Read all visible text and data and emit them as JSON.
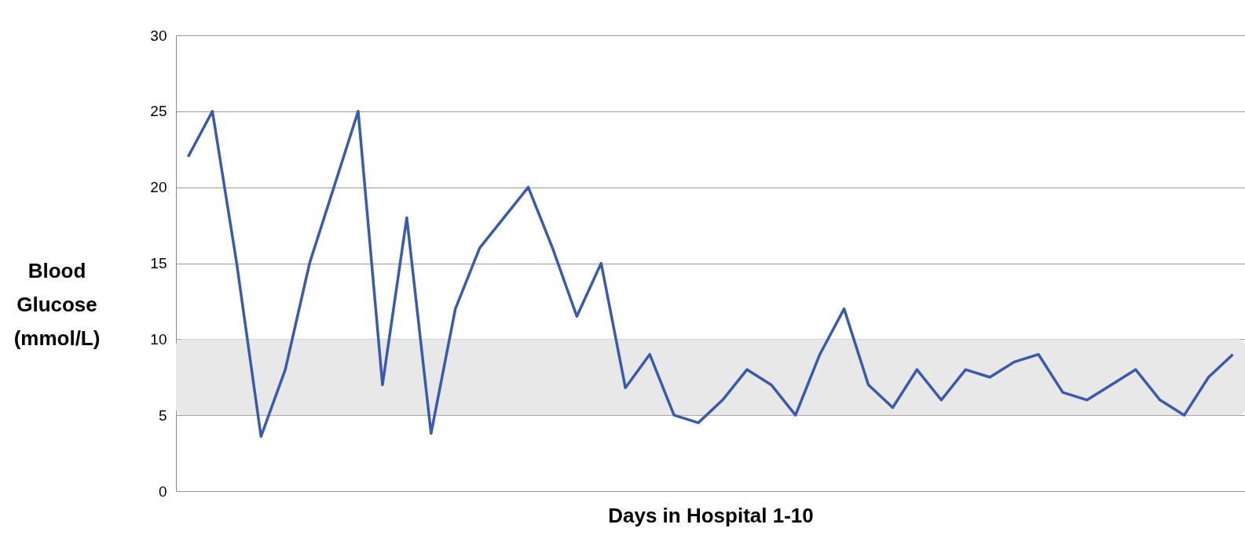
{
  "chart_data": {
    "type": "line",
    "xlabel": "Days in Hospital 1-10",
    "ylabel": "Blood Glucose (mmol/L)",
    "categories": [
      null,
      null,
      null,
      null,
      null,
      null,
      null,
      null,
      null,
      null,
      null,
      null,
      null,
      null,
      null,
      null,
      null,
      null,
      null,
      null,
      null,
      null,
      null,
      null,
      null,
      null,
      null,
      null,
      null,
      null,
      null,
      null,
      null,
      null,
      null,
      null,
      null,
      null,
      null,
      null,
      null,
      null,
      null,
      null
    ],
    "series": [
      {
        "color": "#3a5aab",
        "values": [
          22,
          25,
          15,
          3.6,
          8,
          15,
          20,
          25,
          7,
          18,
          3.8,
          12,
          16,
          18,
          20,
          16,
          11.5,
          15,
          6.8,
          9,
          5,
          4.5,
          6,
          8,
          7,
          5,
          9,
          12,
          7,
          5.5,
          8,
          6,
          8,
          7.5,
          8.5,
          9,
          6.5,
          6,
          7,
          8,
          6,
          5,
          7.5,
          9
        ]
      }
    ],
    "ylim": [
      0,
      30
    ],
    "yticks": [
      0,
      5,
      10,
      15,
      20,
      25,
      30
    ],
    "grid": "y",
    "tick_labels": "y",
    "bands": [
      {
        "axis": "y",
        "from": 5,
        "to": 10,
        "color": "#e8e8e8"
      }
    ]
  }
}
